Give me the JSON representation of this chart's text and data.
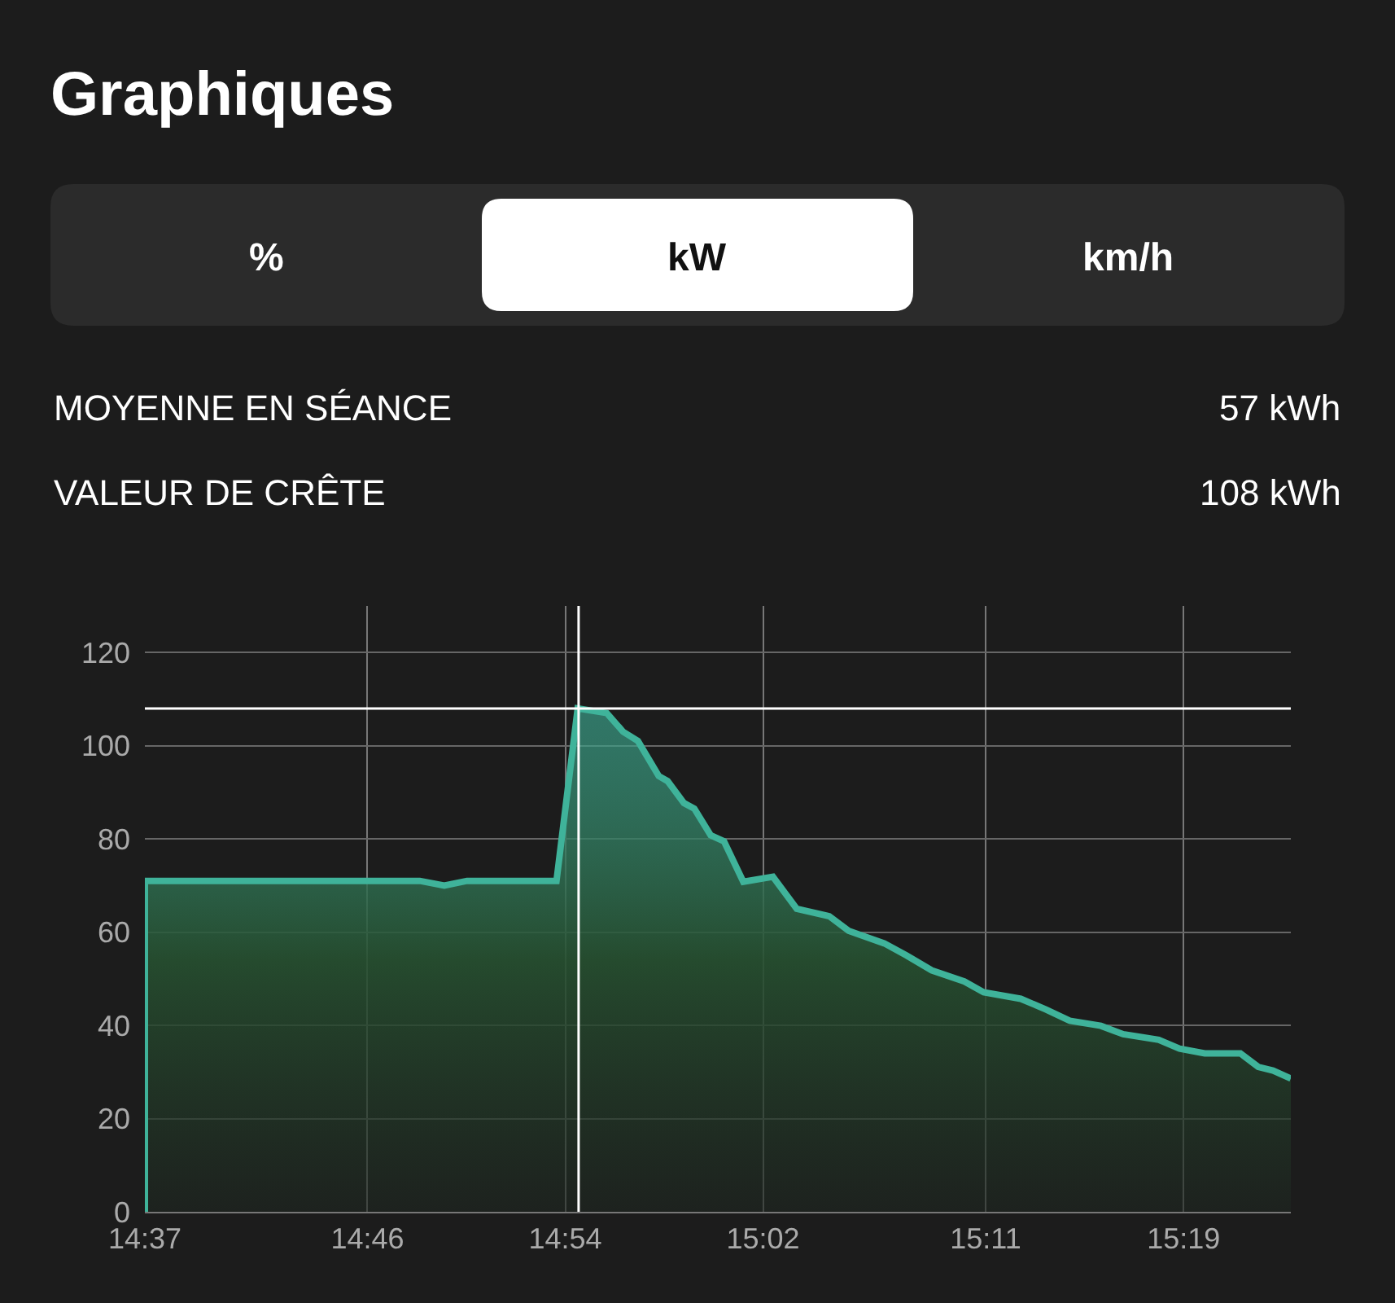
{
  "chart_data": {
    "type": "area",
    "title": "Graphiques",
    "annotations": [
      "%",
      "kW",
      "km/h",
      "MOYENNE EN SÉANCE",
      "57 kWh",
      "VALEUR DE CRÊTE",
      "108 kWh"
    ],
    "series": [
      {
        "color": "#3fb39a",
        "x": [
          14.6167,
          14.6167,
          14.802,
          14.8185,
          14.8338,
          14.8941,
          14.9084,
          14.928,
          14.939,
          14.949,
          14.963,
          14.969,
          14.98,
          14.987,
          14.998,
          15.007,
          15.02,
          15.04,
          15.056,
          15.078,
          15.091,
          15.115,
          15.13,
          15.147,
          15.169,
          15.182,
          15.207,
          15.224,
          15.24,
          15.261,
          15.276,
          15.3,
          15.314,
          15.331,
          15.355,
          15.367,
          15.377,
          15.389
        ],
        "values": [
          0,
          71,
          71,
          70,
          71,
          71,
          108,
          107,
          103,
          101,
          93.5,
          92.4,
          87.7,
          86.5,
          80.8,
          79.5,
          70.8,
          71.9,
          65,
          63.4,
          60.3,
          57.6,
          55,
          51.8,
          49.4,
          47.1,
          45.7,
          43.4,
          41,
          39.9,
          38.1,
          36.9,
          35,
          34,
          34,
          31.1,
          30.3,
          28.6
        ]
      }
    ],
    "xlim": [
      14.6167,
      15.389
    ],
    "xticks": [
      {
        "value": 14.6167,
        "label": "14:37"
      },
      {
        "value": 14.7667,
        "label": "14:46"
      },
      {
        "value": 14.9,
        "label": "14:54"
      },
      {
        "value": 15.0333,
        "label": "15:02"
      },
      {
        "value": 15.1833,
        "label": "15:11"
      },
      {
        "value": 15.3167,
        "label": "15:19"
      }
    ],
    "ylim": [
      0,
      130
    ],
    "yticks": [
      0,
      20,
      40,
      60,
      80,
      100,
      120
    ],
    "ref_lines": [
      {
        "axis": "x",
        "value": 14.909,
        "color": "#ffffff"
      },
      {
        "axis": "y",
        "value": 108,
        "color": "#ffffff"
      }
    ],
    "grid": true,
    "marker": "none",
    "line_style": "solid"
  }
}
